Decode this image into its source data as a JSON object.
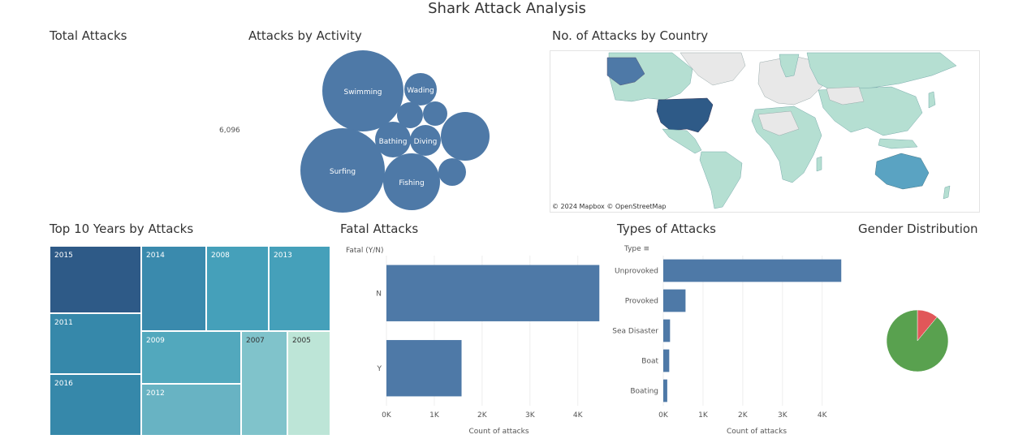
{
  "dashboard": {
    "title": "Shark Attack Analysis"
  },
  "total_attacks": {
    "title": "Total Attacks",
    "value": "6,096"
  },
  "activity": {
    "title": "Attacks by Activity",
    "color": "#4e79a7",
    "bubbles": [
      {
        "label": "Swimming",
        "r": 50
      },
      {
        "label": "Surfing",
        "r": 52
      },
      {
        "label": "Fishing",
        "r": 35
      },
      {
        "label": "Wading",
        "r": 20
      },
      {
        "label": "Bathing",
        "r": 22
      },
      {
        "label": "Diving",
        "r": 19
      },
      {
        "label": "",
        "r": 30
      },
      {
        "label": "",
        "r": 16
      },
      {
        "label": "",
        "r": 15
      },
      {
        "label": "",
        "r": 17
      }
    ]
  },
  "map": {
    "title": "No. of Attacks by Country",
    "attribution": "© 2024 Mapbox © OpenStreetMap"
  },
  "top_years": {
    "title": "Top 10 Years by Attacks",
    "years": [
      "2015",
      "2014",
      "2008",
      "2013",
      "2011",
      "2009",
      "2007",
      "2005",
      "2016",
      "2012"
    ],
    "colors": {
      "2015": "#2e5a87",
      "2014": "#3a8aad",
      "2008": "#45a0ba",
      "2013": "#45a0ba",
      "2011": "#3688aa",
      "2016": "#3688aa",
      "2009": "#52a8bd",
      "2012": "#68b3c3",
      "2007": "#80c3cb",
      "2005": "#bde5d7"
    }
  },
  "chart_data": [
    {
      "type": "bar",
      "title": "Fatal Attacks",
      "category_header": "Fatal (Y/N)",
      "categories": [
        "N",
        "Y"
      ],
      "values": [
        4450,
        1570
      ],
      "xlabel": "Count of attacks",
      "xticks": [
        "0K",
        "1K",
        "2K",
        "3K",
        "4K"
      ],
      "xlim": [
        0,
        4700
      ],
      "color": "#4e79a7"
    },
    {
      "type": "bar",
      "title": "Types of Attacks",
      "category_header": "Type",
      "categories": [
        "Unprovoked",
        "Provoked",
        "Sea Disaster",
        "Boat",
        "Boating"
      ],
      "values": [
        4480,
        560,
        170,
        150,
        100
      ],
      "xlabel": "Count of attacks",
      "xticks": [
        "0K",
        "1K",
        "2K",
        "3K",
        "4K"
      ],
      "xlim": [
        0,
        4700
      ],
      "color": "#4e79a7"
    },
    {
      "type": "pie",
      "title": "Gender Distribution",
      "slices": [
        {
          "value": 89,
          "color": "#59a14f"
        },
        {
          "value": 11,
          "color": "#e15759"
        }
      ]
    }
  ]
}
